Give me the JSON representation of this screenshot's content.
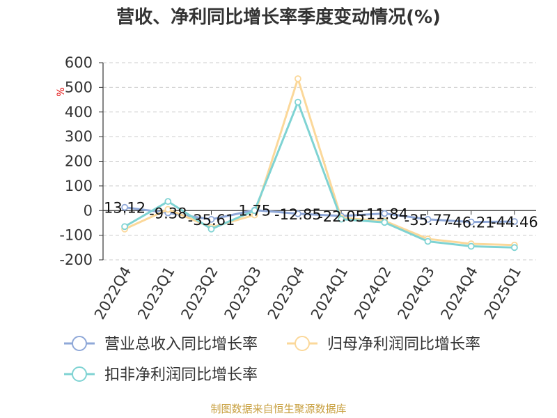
{
  "chart_data": {
    "type": "line",
    "title": "营收、净利同比增长率季度变动情况(%)",
    "ylabel": "%",
    "categories": [
      "2022Q4",
      "2023Q1",
      "2023Q2",
      "2023Q3",
      "2023Q4",
      "2024Q1",
      "2024Q2",
      "2024Q3",
      "2024Q4",
      "2025Q1"
    ],
    "ylim": [
      -200,
      600
    ],
    "yticks": [
      "600",
      "500",
      "400",
      "300",
      "200",
      "100",
      "0",
      "-100",
      "-200"
    ],
    "grid": true,
    "legend_position": "bottom",
    "series": [
      {
        "name": "营业总收入同比增长率",
        "color": "#8fa8d8",
        "values": [
          13.12,
          -9.38,
          -35.61,
          1.75,
          -12.85,
          -22.05,
          -11.84,
          -35.77,
          -46.21,
          -44.46
        ],
        "labels": [
          "13.12",
          "-9.38",
          "-35.61",
          "1.75",
          "-12.85",
          "-22.05",
          "-11.84",
          "-35.77",
          "-46.21",
          "-44.46"
        ]
      },
      {
        "name": "归母净利润同比增长率",
        "color": "#fbd89a",
        "values": [
          -75,
          5,
          -68,
          -18,
          535,
          -30,
          -42,
          -115,
          -135,
          -140
        ]
      },
      {
        "name": "扣非净利润同比增长率",
        "color": "#7fd3d3",
        "values": [
          -65,
          37,
          -75,
          0,
          440,
          -35,
          -48,
          -125,
          -145,
          -150
        ]
      }
    ]
  },
  "footer": {
    "source": "制图数据来自恒生聚源数据库"
  }
}
